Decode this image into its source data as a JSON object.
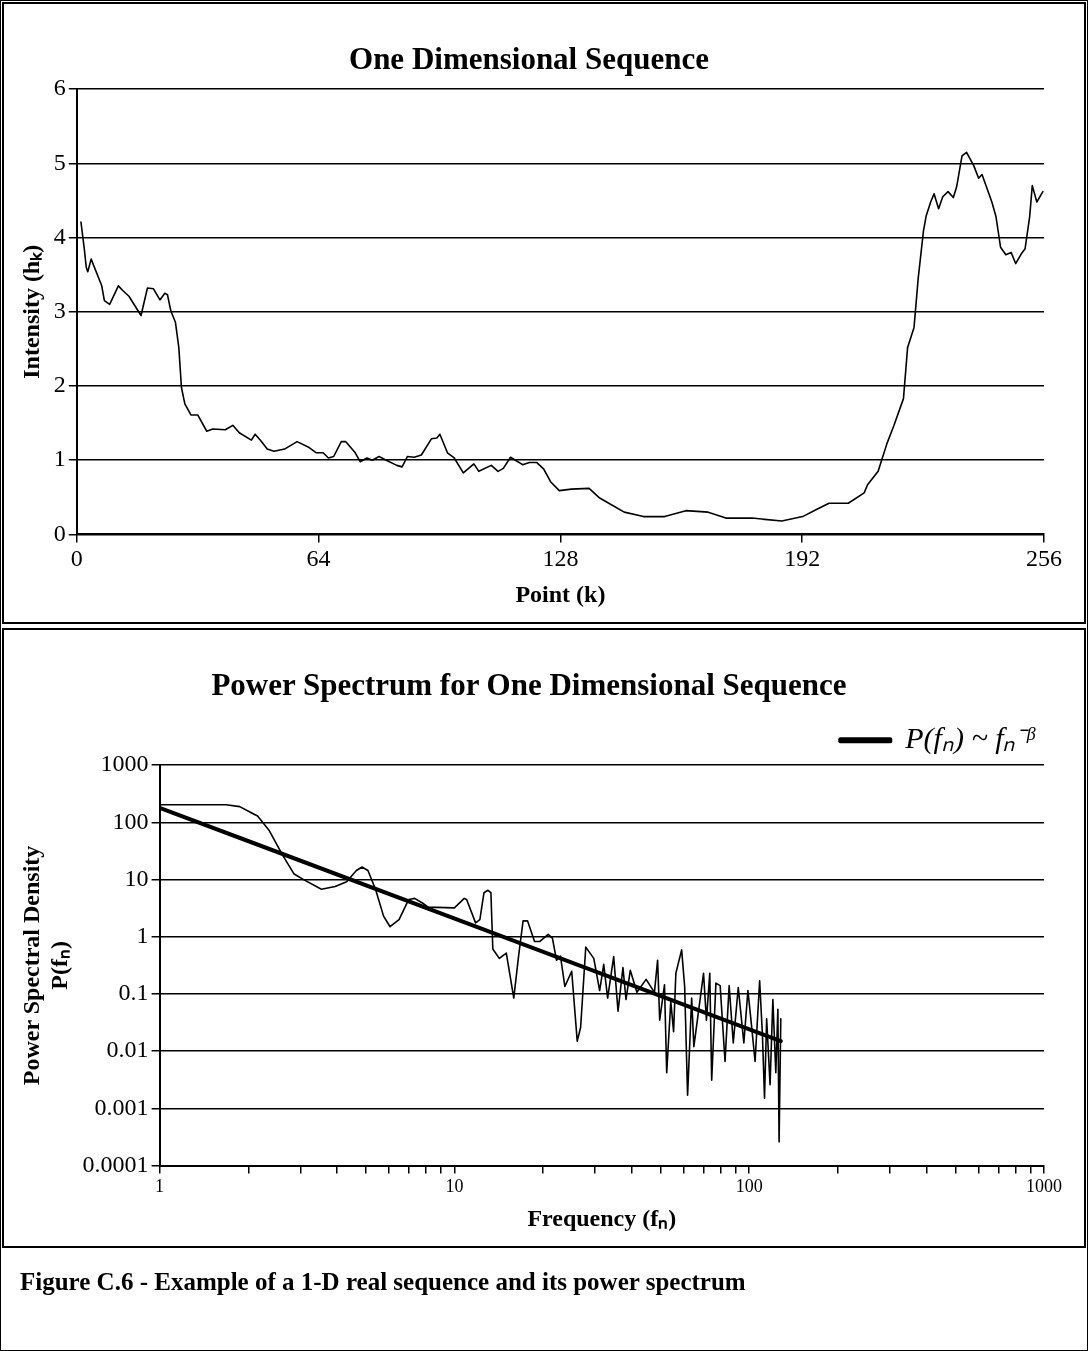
{
  "chart_data": [
    {
      "type": "line",
      "title": "One Dimensional Sequence",
      "xlabel": "Point (k)",
      "ylabel": "Intensity (hₖ)",
      "xlim": [
        0,
        256
      ],
      "xticks": [
        0,
        64,
        128,
        192,
        256
      ],
      "ylim": [
        0,
        6
      ],
      "yticks": [
        0,
        1,
        2,
        3,
        4,
        5,
        6
      ],
      "grid": "y",
      "legend": false,
      "marker": "none",
      "x": [
        1.1,
        2.0,
        2.5,
        2.9,
        3.8,
        6.6,
        7.3,
        8.7,
        11.0,
        12.1,
        13.8,
        17.0,
        18.7,
        20.3,
        22.0,
        23.3,
        24.0,
        24.9,
        26.1,
        27.0,
        27.7,
        28.6,
        30.2,
        32.0,
        34.4,
        36.0,
        39.3,
        41.3,
        43.0,
        46.2,
        47.2,
        48.6,
        50.4,
        52.2,
        55.0,
        58.3,
        61.5,
        63.4,
        65.2,
        66.6,
        68.0,
        70.0,
        71.2,
        73.7,
        75.0,
        76.8,
        78.2,
        80.0,
        81.9,
        84.7,
        86.1,
        87.5,
        89.3,
        91.2,
        93.9,
        95.3,
        96.1,
        98.1,
        99.9,
        102.3,
        105.1,
        106.4,
        109.7,
        111.5,
        112.9,
        114.8,
        116.1,
        118.0,
        119.8,
        121.7,
        123.6,
        125.4,
        127.7,
        130.9,
        135.6,
        138.4,
        144.9,
        150.0,
        155.6,
        161.2,
        167.1,
        171.8,
        178.7,
        186.6,
        192.1,
        195.9,
        199.1,
        204.2,
        208.4,
        209.3,
        212.1,
        214.4,
        216.3,
        218.8,
        219.9,
        221.6,
        222.7,
        224.1,
        224.8,
        226.0,
        226.9,
        228.1,
        229.2,
        230.6,
        232.0,
        232.9,
        234.3,
        235.5,
        237.4,
        238.7,
        239.6,
        242.2,
        243.3,
        244.5,
        245.9,
        247.3,
        248.5,
        250.1,
        251.0,
        252.2,
        252.9,
        254.1,
        255.7
      ],
      "series": [
        {
          "color": "#000000",
          "values": [
            4.21,
            3.84,
            3.6,
            3.54,
            3.71,
            3.35,
            3.15,
            3.1,
            3.35,
            3.29,
            3.21,
            2.95,
            3.32,
            3.31,
            3.16,
            3.25,
            3.23,
            3.01,
            2.86,
            2.52,
            1.98,
            1.76,
            1.61,
            1.61,
            1.39,
            1.42,
            1.41,
            1.47,
            1.37,
            1.27,
            1.35,
            1.27,
            1.15,
            1.12,
            1.15,
            1.25,
            1.17,
            1.1,
            1.1,
            1.03,
            1.05,
            1.25,
            1.25,
            1.1,
            0.98,
            1.03,
            1.0,
            1.05,
            1.0,
            0.93,
            0.91,
            1.05,
            1.04,
            1.07,
            1.29,
            1.3,
            1.35,
            1.1,
            1.03,
            0.83,
            0.95,
            0.85,
            0.93,
            0.85,
            0.89,
            1.04,
            1.0,
            0.94,
            0.97,
            0.97,
            0.88,
            0.71,
            0.59,
            0.61,
            0.62,
            0.49,
            0.3,
            0.24,
            0.24,
            0.32,
            0.3,
            0.22,
            0.22,
            0.18,
            0.24,
            0.34,
            0.42,
            0.42,
            0.56,
            0.67,
            0.85,
            1.22,
            1.47,
            1.83,
            2.52,
            2.79,
            3.45,
            4.09,
            4.29,
            4.48,
            4.59,
            4.39,
            4.55,
            4.62,
            4.54,
            4.69,
            5.1,
            5.15,
            4.97,
            4.8,
            4.85,
            4.48,
            4.28,
            3.87,
            3.77,
            3.8,
            3.65,
            3.79,
            3.85,
            4.28,
            4.7,
            4.48,
            4.62
          ]
        }
      ]
    },
    {
      "type": "line",
      "title": "Power Spectrum for One Dimensional Sequence",
      "xlabel": "Frequency (fₙ)",
      "ylabel": "Power Spectral Density\nP(fₙ)",
      "log": "xy",
      "xlim": [
        1,
        1000
      ],
      "xticks": [
        1,
        {
          "value": 2,
          "label": null
        },
        {
          "value": 3,
          "label": null
        },
        {
          "value": 4,
          "label": null
        },
        {
          "value": 5,
          "label": null
        },
        {
          "value": 6,
          "label": null
        },
        {
          "value": 7,
          "label": null
        },
        {
          "value": 8,
          "label": null
        },
        {
          "value": 9,
          "label": null
        },
        10,
        {
          "value": 20,
          "label": null
        },
        {
          "value": 30,
          "label": null
        },
        {
          "value": 40,
          "label": null
        },
        {
          "value": 50,
          "label": null
        },
        {
          "value": 60,
          "label": null
        },
        {
          "value": 70,
          "label": null
        },
        {
          "value": 80,
          "label": null
        },
        {
          "value": 90,
          "label": null
        },
        100,
        {
          "value": 200,
          "label": null
        },
        {
          "value": 300,
          "label": null
        },
        {
          "value": 400,
          "label": null
        },
        {
          "value": 500,
          "label": null
        },
        {
          "value": 600,
          "label": null
        },
        {
          "value": 700,
          "label": null
        },
        {
          "value": 800,
          "label": null
        },
        {
          "value": 900,
          "label": null
        },
        1000
      ],
      "ylim": [
        0.0001,
        1000
      ],
      "yticks": [
        0.0001,
        0.001,
        0.01,
        0.1,
        1,
        10,
        100,
        1000
      ],
      "grid": "y",
      "legend": "top right",
      "marker": "none",
      "x": [
        1,
        1.68,
        1.87,
        2.15,
        2.35,
        2.61,
        2.86,
        3.09,
        3.54,
        3.94,
        4.31,
        4.65,
        4.86,
        5.09,
        5.41,
        5.75,
        6.05,
        6.49,
        7.0,
        7.33,
        7.79,
        8.15,
        10.0,
        10.8,
        11.0,
        11.8,
        12.2,
        12.6,
        13.0,
        13.3,
        13.5,
        14.2,
        15.0,
        15.9,
        16.5,
        17.1,
        17.7,
        18.7,
        19.5,
        20.8,
        21.5,
        22.2,
        22.9,
        23.7,
        25.0,
        26.1,
        26.8,
        27.9,
        29.7,
        31.1,
        32.1,
        33.1,
        34.7,
        35.9,
        37.3,
        38.2,
        39.5,
        41.6,
        44.7,
        47.7,
        48.9,
        49.7,
        51.6,
        52.5,
        54.2,
        55.4,
        56.4,
        59.0,
        60.4,
        61.8,
        63.8,
        64.9,
        70.0,
        71.6,
        73.5,
        74.6,
        77.1,
        79.7,
        82.8,
        85.5,
        88.3,
        91.8,
        95.9,
        99.0,
        101.4,
        104.7,
        108.5,
        110.9,
        112.7,
        114.6,
        117.7,
        120.3,
        123.1,
        125.1,
        126.3,
        128.0
      ],
      "series": [
        {
          "color": "#000000",
          "values": [
            203,
            203,
            189,
            129,
            73,
            27,
            12.5,
            9.9,
            6.8,
            7.6,
            9.2,
            14.4,
            16.6,
            14.4,
            6.6,
            2.3,
            1.5,
            2.0,
            4.5,
            4.7,
            3.9,
            3.3,
            3.2,
            4.7,
            4.5,
            1.75,
            2.0,
            5.9,
            6.5,
            5.9,
            0.61,
            0.42,
            0.52,
            0.085,
            0.45,
            1.9,
            1.9,
            0.83,
            0.83,
            1.1,
            0.95,
            0.39,
            0.46,
            0.135,
            0.25,
            0.015,
            0.026,
            0.66,
            0.42,
            0.115,
            0.33,
            0.085,
            0.45,
            0.05,
            0.29,
            0.08,
            0.26,
            0.107,
            0.18,
            0.107,
            0.39,
            0.035,
            0.145,
            0.0042,
            0.074,
            0.022,
            0.23,
            0.59,
            0.135,
            0.0017,
            0.085,
            0.012,
            0.23,
            0.035,
            0.23,
            0.0031,
            0.155,
            0.14,
            0.0066,
            0.14,
            0.014,
            0.13,
            0.014,
            0.115,
            0.035,
            0.0066,
            0.17,
            0.019,
            0.0015,
            0.037,
            0.0026,
            0.08,
            0.0042,
            0.054,
            0.00026,
            0.037
          ]
        },
        {
          "name": "P(fₙ) ~ fₙ⁻ᵝ",
          "color": "#000000",
          "x": [
            1,
            128
          ],
          "values": [
            180,
            0.015
          ]
        }
      ],
      "annotations": [
        "Figure C.6 - Example of a 1-D real sequence and its power spectrum"
      ]
    }
  ]
}
